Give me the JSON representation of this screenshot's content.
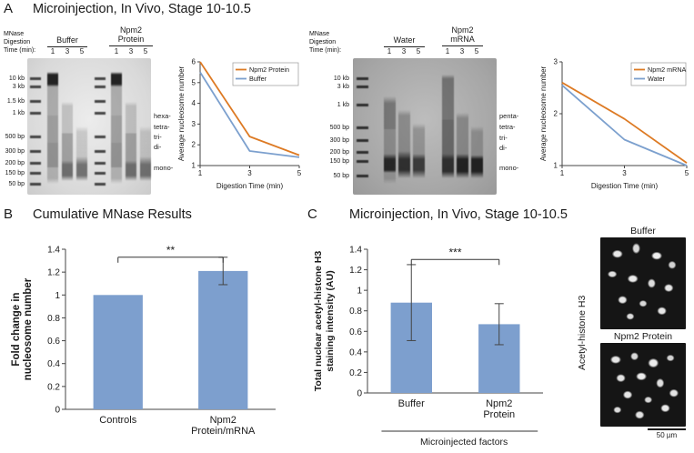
{
  "panels": {
    "a": {
      "letter": "A",
      "title": "Microinjection, In Vivo, Stage 10-10.5",
      "gel_protein": {
        "header": [
          "MNase",
          "Digestion",
          "Time (min):"
        ],
        "group1": "Buffer",
        "group2_line1": "Npm2",
        "group2_line2": "Protein",
        "lanes": [
          "1",
          "3",
          "5",
          "1",
          "3",
          "5"
        ],
        "ladder": [
          "10 kb",
          "3 kb",
          "1.5 kb",
          "1 kb",
          "500 bp",
          "300 bp",
          "200 bp",
          "150 bp",
          "50 bp"
        ],
        "side": [
          "hexa-",
          "tetra-",
          "tri-",
          "di-",
          "mono-"
        ]
      },
      "gel_mrna": {
        "header": [
          "MNase",
          "Digestion",
          "Time (min):"
        ],
        "group1": "Water",
        "group2_line1": "Npm2",
        "group2_line2": "mRNA",
        "lanes": [
          "1",
          "3",
          "5",
          "1",
          "3",
          "5"
        ],
        "ladder": [
          "10 kb",
          "3 kb",
          "1 kb",
          "500 bp",
          "300 bp",
          "200 bp",
          "150 bp",
          "50 bp"
        ],
        "side": [
          "penta-",
          "tetra-",
          "tri-",
          "di-",
          "mono-"
        ]
      }
    },
    "b": {
      "letter": "B",
      "title": "Cumulative MNase Results"
    },
    "c": {
      "letter": "C",
      "title": "Microinjection, In Vivo, Stage 10-10.5",
      "micrographs": {
        "side_label": "Acetyl-histone H3",
        "top_label": "Buffer",
        "bottom_label": "Npm2 Protein",
        "scale_bar": "50 µm"
      }
    }
  },
  "chart_data": [
    {
      "type": "line",
      "x": [
        1,
        3,
        5
      ],
      "series": [
        {
          "name": "Npm2 Protein",
          "values": [
            6.0,
            2.4,
            1.5
          ],
          "color": "#DD7A24"
        },
        {
          "name": "Buffer",
          "values": [
            5.5,
            1.7,
            1.4
          ],
          "color": "#7CA0CE"
        }
      ],
      "xlabel": "Digestion Time (min)",
      "ylabel": "Average nucleosome number",
      "ylim": [
        1,
        6
      ],
      "yticks": [
        1,
        2,
        3,
        4,
        5,
        6
      ],
      "legend": "top-right"
    },
    {
      "type": "line",
      "x": [
        1,
        3,
        5
      ],
      "series": [
        {
          "name": "Npm2 mRNA",
          "values": [
            2.6,
            1.9,
            1.05
          ],
          "color": "#DD7A24"
        },
        {
          "name": "Water",
          "values": [
            2.55,
            1.5,
            1.0
          ],
          "color": "#7CA0CE"
        }
      ],
      "xlabel": "Digestion Time (min)",
      "ylabel": "Average nucleosome number",
      "ylim": [
        1,
        3
      ],
      "yticks": [
        1,
        2,
        3
      ],
      "legend": "top-right"
    },
    {
      "type": "bar",
      "categories": [
        "Controls",
        "Npm2\nProtein/mRNA"
      ],
      "values": [
        1.0,
        1.21
      ],
      "errors": [
        0,
        0.12
      ],
      "bar_color": "#7D9FCE",
      "ylabel": "Fold change in\nnucleosome number",
      "ylim": [
        0,
        1.4
      ],
      "ytick_step": 0.2,
      "significance": "**",
      "sig_y": 1.33
    },
    {
      "type": "bar",
      "categories": [
        "Buffer",
        "Npm2\nProtein"
      ],
      "values": [
        0.88,
        0.67
      ],
      "errors": [
        0.37,
        0.2
      ],
      "bar_color": "#7D9FCE",
      "ylabel": "Total nuclear acetyl-histone H3\nstaining intensity (AU)",
      "xlabel": "Microinjected factors",
      "ylim": [
        0,
        1.4
      ],
      "ytick_step": 0.2,
      "significance": "***",
      "sig_y": 1.3
    }
  ]
}
